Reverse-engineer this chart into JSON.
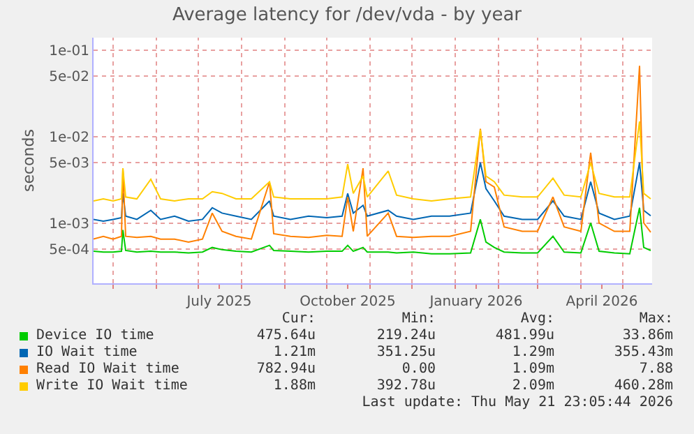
{
  "chart_data": {
    "type": "line",
    "title": "Average latency for /dev/vda - by year",
    "ylabel": "seconds",
    "log": true,
    "grid": true,
    "legend": "bottom",
    "marker": "none",
    "line_style": "solid",
    "xlim": [
      "2025-04-17",
      "2026-05-22"
    ],
    "ylim": [
      0.0002,
      0.14
    ],
    "yticks": [
      {
        "value": 0.0005,
        "label": "5e-04"
      },
      {
        "value": 0.001,
        "label": "1e-03"
      },
      {
        "value": 0.005,
        "label": "5e-03"
      },
      {
        "value": 0.01,
        "label": "1e-02"
      },
      {
        "value": 0.05,
        "label": "5e-02"
      },
      {
        "value": 0.1,
        "label": "1e-01"
      }
    ],
    "xticks": [
      {
        "value": "2025-05-01",
        "label": null
      },
      {
        "value": "2025-06-01",
        "label": null
      },
      {
        "value": "2025-07-01",
        "label": null
      },
      {
        "value": "2025-07-16",
        "label": "July 2025"
      },
      {
        "value": "2025-08-01",
        "label": null
      },
      {
        "value": "2025-09-01",
        "label": null
      },
      {
        "value": "2025-10-01",
        "label": null
      },
      {
        "value": "2025-10-16",
        "label": "October 2025"
      },
      {
        "value": "2025-11-01",
        "label": null
      },
      {
        "value": "2025-12-01",
        "label": null
      },
      {
        "value": "2026-01-01",
        "label": null
      },
      {
        "value": "2026-01-16",
        "label": "January 2026"
      },
      {
        "value": "2026-02-01",
        "label": null
      },
      {
        "value": "2026-03-01",
        "label": null
      },
      {
        "value": "2026-04-01",
        "label": null
      },
      {
        "value": "2026-04-16",
        "label": "April 2026"
      },
      {
        "value": "2026-05-01",
        "label": null
      }
    ],
    "x": [
      "2025-04-17",
      "2025-04-24",
      "2025-05-01",
      "2025-05-07",
      "2025-05-08",
      "2025-05-10",
      "2025-05-18",
      "2025-05-28",
      "2025-06-04",
      "2025-06-14",
      "2025-06-24",
      "2025-07-04",
      "2025-07-11",
      "2025-07-18",
      "2025-07-28",
      "2025-08-08",
      "2025-08-21",
      "2025-08-24",
      "2025-09-05",
      "2025-09-18",
      "2025-10-01",
      "2025-10-12",
      "2025-10-16",
      "2025-10-20",
      "2025-10-27",
      "2025-10-30",
      "2025-11-14",
      "2025-11-20",
      "2025-12-02",
      "2025-12-15",
      "2025-12-28",
      "2026-01-12",
      "2026-01-19",
      "2026-01-23",
      "2026-01-29",
      "2026-02-05",
      "2026-02-18",
      "2026-03-01",
      "2026-03-12",
      "2026-03-20",
      "2026-04-01",
      "2026-04-08",
      "2026-04-14",
      "2026-04-25",
      "2026-05-06",
      "2026-05-13",
      "2026-05-16",
      "2026-05-21"
    ],
    "series": [
      {
        "name": "Device IO time",
        "color": "#00cc00",
        "values": [
          0.00047,
          0.00046,
          0.00046,
          0.00047,
          0.00083,
          0.00048,
          0.00046,
          0.00047,
          0.00046,
          0.00046,
          0.00045,
          0.00046,
          0.00052,
          0.00049,
          0.00047,
          0.00046,
          0.00055,
          0.00048,
          0.00047,
          0.00046,
          0.00047,
          0.00047,
          0.00055,
          0.00047,
          0.00052,
          0.00046,
          0.00046,
          0.00045,
          0.00046,
          0.00044,
          0.00044,
          0.00045,
          0.0011,
          0.0006,
          0.00052,
          0.00046,
          0.00045,
          0.00045,
          0.0007,
          0.00046,
          0.00045,
          0.001,
          0.00047,
          0.00045,
          0.00044,
          0.0015,
          0.00052,
          0.00048
        ]
      },
      {
        "name": "IO Wait time",
        "color": "#0066b3",
        "values": [
          0.0011,
          0.00105,
          0.0011,
          0.00115,
          0.0022,
          0.0012,
          0.0011,
          0.0014,
          0.0011,
          0.0012,
          0.00105,
          0.0011,
          0.0015,
          0.0013,
          0.0012,
          0.0011,
          0.0018,
          0.0012,
          0.0011,
          0.0012,
          0.00115,
          0.0012,
          0.0022,
          0.0013,
          0.0016,
          0.0012,
          0.0014,
          0.0012,
          0.0011,
          0.0012,
          0.0012,
          0.0013,
          0.005,
          0.0025,
          0.0018,
          0.0012,
          0.0011,
          0.0011,
          0.0018,
          0.0012,
          0.0011,
          0.003,
          0.0013,
          0.0011,
          0.0012,
          0.005,
          0.0014,
          0.00121
        ]
      },
      {
        "name": "Read IO Wait time",
        "color": "#ff8000",
        "values": [
          0.00065,
          0.0007,
          0.00065,
          0.0007,
          0.0043,
          0.0007,
          0.00068,
          0.0007,
          0.00065,
          0.00065,
          0.0006,
          0.00065,
          0.0013,
          0.0008,
          0.0007,
          0.00065,
          0.003,
          0.00075,
          0.0007,
          0.00068,
          0.00072,
          0.0007,
          0.002,
          0.0008,
          0.0043,
          0.0007,
          0.0013,
          0.0007,
          0.00068,
          0.0007,
          0.0007,
          0.0008,
          0.0123,
          0.003,
          0.0026,
          0.0009,
          0.0008,
          0.0008,
          0.002,
          0.0009,
          0.0008,
          0.0065,
          0.001,
          0.0008,
          0.0008,
          0.066,
          0.001,
          0.00078
        ]
      },
      {
        "name": "Write IO Wait time",
        "color": "#ffcc00",
        "values": [
          0.0018,
          0.0019,
          0.0018,
          0.0019,
          0.0043,
          0.002,
          0.0019,
          0.0032,
          0.0019,
          0.0018,
          0.0019,
          0.0019,
          0.0023,
          0.0022,
          0.0019,
          0.0019,
          0.003,
          0.002,
          0.0019,
          0.0019,
          0.0019,
          0.002,
          0.0048,
          0.0022,
          0.0035,
          0.002,
          0.004,
          0.0021,
          0.0019,
          0.0018,
          0.0019,
          0.002,
          0.012,
          0.0035,
          0.003,
          0.0021,
          0.002,
          0.002,
          0.0033,
          0.0021,
          0.002,
          0.005,
          0.0022,
          0.002,
          0.002,
          0.015,
          0.0022,
          0.0019
        ]
      }
    ],
    "annotations": [
      "Cur:",
      "Min:",
      "Avg:",
      "Max:",
      "475.64u",
      "219.24u",
      "481.99u",
      "33.86m",
      "1.21m",
      "351.25u",
      "1.29m",
      "355.43m",
      "782.94u",
      "0.00",
      "1.09m",
      "7.88",
      "1.88m",
      "392.78u",
      "2.09m",
      "460.28m",
      "Last update: Thu May 21 23:05:44 2026"
    ]
  }
}
